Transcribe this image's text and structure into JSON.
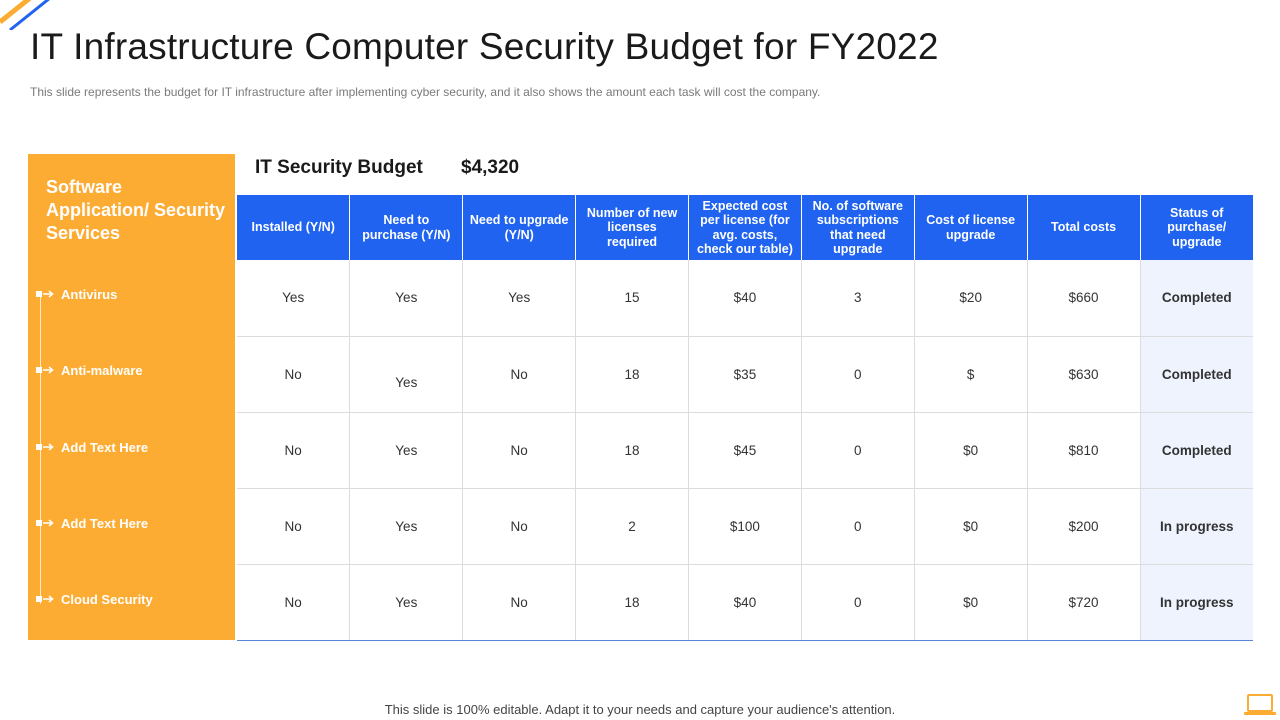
{
  "title": "IT Infrastructure Computer Security Budget for FY2022",
  "subtitle": "This slide represents the budget for IT infrastructure after implementing cyber security, and it also shows the amount each task will cost the company.",
  "left_panel": {
    "heading": "Software Application/ Security Services",
    "items": [
      "Antivirus",
      "Anti-malware",
      "Add Text Here",
      "Add Text Here",
      "Cloud Security"
    ]
  },
  "budget": {
    "label": "IT Security Budget",
    "value": "$4,320"
  },
  "table": {
    "headers": [
      "Installed (Y/N)",
      "Need to purchase (Y/N)",
      "Need to upgrade (Y/N)",
      "Number of new licenses required",
      "Expected cost per license (for avg. costs, check our table)",
      "No. of software subscriptions that need upgrade",
      "Cost of license upgrade",
      "Total costs",
      "Status of purchase/ upgrade"
    ],
    "rows": [
      [
        "Yes",
        "Yes",
        "Yes",
        "15",
        "$40",
        "3",
        "$20",
        "$660",
        "Completed"
      ],
      [
        "No",
        "Yes",
        "No",
        "18",
        "$35",
        "0",
        "$",
        "$630",
        "Completed"
      ],
      [
        "No",
        "Yes",
        "No",
        "18",
        "$45",
        "0",
        "$0",
        "$810",
        "Completed"
      ],
      [
        "No",
        "Yes",
        "No",
        "2",
        "$100",
        "0",
        "$0",
        "$200",
        "In progress"
      ],
      [
        "No",
        "Yes",
        "No",
        "18",
        "$40",
        "0",
        "$0",
        "$720",
        "In progress"
      ]
    ]
  },
  "footer": "This slide is 100% editable. Adapt it to your needs and capture your audience's attention.",
  "colors": {
    "accent_orange": "#fdac33",
    "header_blue": "#1f63f0",
    "status_bg": "#eef3fe"
  },
  "icons": {
    "corner": "corner-stripes-icon",
    "bullet": "bullet-arrow-icon",
    "laptop": "laptop-icon"
  }
}
